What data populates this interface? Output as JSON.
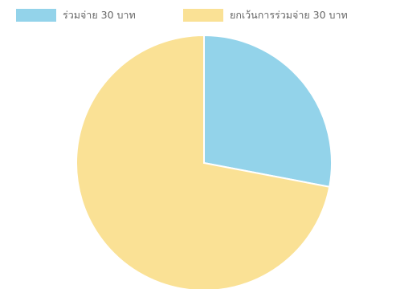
{
  "chart_data": {
    "type": "pie",
    "title": "",
    "series": [
      {
        "name": "",
        "labels": [
          "ร่วมจ่าย 30 บาท",
          "ยกเว้นการร่วมจ่าย 30 บาท"
        ],
        "values": [
          28,
          72
        ]
      }
    ],
    "legend": {
      "placement": "top",
      "items": [
        {
          "label": "ร่วมจ่าย 30 บาท",
          "color": "#93d3ea"
        },
        {
          "label": "ยกเว้นการร่วมจ่าย 30 บาท",
          "color": "#fae195"
        }
      ]
    },
    "colors": [
      "#93d3ea",
      "#fae195"
    ],
    "border_color": "#ffffff"
  }
}
